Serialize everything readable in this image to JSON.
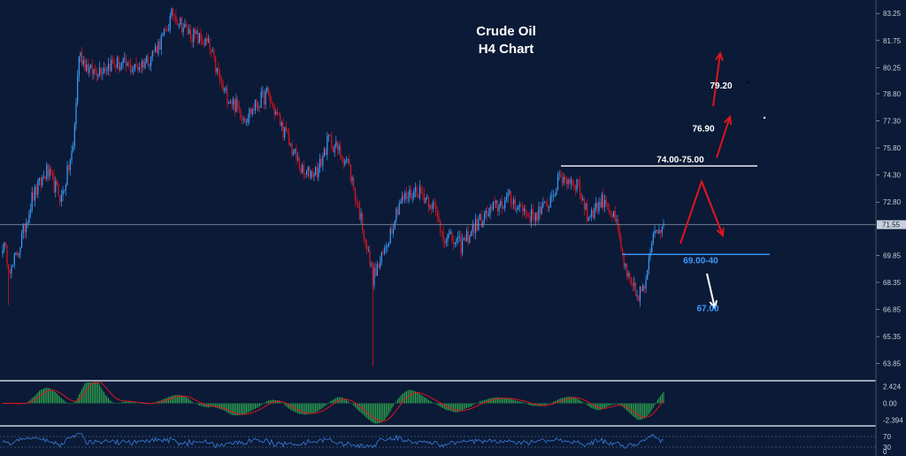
{
  "chart_data": [
    {
      "type": "candlestick",
      "title": "Crude Oil",
      "subtitle": "H4 Chart",
      "ylim": [
        63.0,
        83.8
      ],
      "y_ticks": [
        "83.25",
        "81.75",
        "80.25",
        "78.80",
        "77.30",
        "75.80",
        "74.30",
        "72.80",
        "71.55",
        "69.85",
        "68.35",
        "66.85",
        "65.35",
        "63.85"
      ],
      "current_price": 71.55,
      "current_price_label": "71.55",
      "resistance": {
        "label": "74.00-75.00",
        "value": 74.8
      },
      "support": {
        "label": "69.00-40",
        "value": 69.9
      },
      "targets": [
        {
          "label": "79.20",
          "value": 79.2
        },
        {
          "label": "76.90",
          "value": 76.9
        },
        {
          "label": "67.00",
          "value": 67.0
        }
      ],
      "colors": {
        "up": "#3aa0ff",
        "down": "#e0141e",
        "background": "#0b1a36",
        "resistance": "#ffffff",
        "support": "#3d9bff",
        "arrow_up": "#e0141e",
        "arrow_down": "#ffffff"
      },
      "anchors": [
        [
          0,
          70.5
        ],
        [
          6,
          69.0
        ],
        [
          12,
          70.5
        ],
        [
          20,
          73.0
        ],
        [
          30,
          74.5
        ],
        [
          40,
          73.0
        ],
        [
          48,
          75.8
        ],
        [
          52,
          81.0
        ],
        [
          60,
          80.0
        ],
        [
          75,
          80.5
        ],
        [
          90,
          80.2
        ],
        [
          100,
          80.8
        ],
        [
          110,
          82.0
        ],
        [
          116,
          83.3
        ],
        [
          125,
          82.3
        ],
        [
          140,
          81.5
        ],
        [
          150,
          79.0
        ],
        [
          165,
          77.5
        ],
        [
          180,
          78.8
        ],
        [
          190,
          77.0
        ],
        [
          205,
          74.3
        ],
        [
          215,
          74.6
        ],
        [
          222,
          76.3
        ],
        [
          235,
          75.0
        ],
        [
          245,
          71.5
        ],
        [
          252,
          68.6
        ],
        [
          258,
          69.6
        ],
        [
          270,
          72.8
        ],
        [
          282,
          73.5
        ],
        [
          292,
          72.8
        ],
        [
          300,
          71.0
        ],
        [
          312,
          70.4
        ],
        [
          322,
          71.5
        ],
        [
          335,
          72.5
        ],
        [
          345,
          73.0
        ],
        [
          360,
          72.0
        ],
        [
          370,
          72.5
        ],
        [
          380,
          74.2
        ],
        [
          392,
          73.8
        ],
        [
          398,
          72.0
        ],
        [
          410,
          73.0
        ],
        [
          418,
          71.5
        ],
        [
          425,
          68.6
        ],
        [
          432,
          67.6
        ],
        [
          438,
          68.2
        ],
        [
          443,
          71.3
        ],
        [
          450,
          71.6
        ]
      ]
    },
    {
      "type": "histogram",
      "indicator": "MACD",
      "y_ticks": [
        "2.424",
        "0.00",
        "-2.394"
      ],
      "ylim": [
        -3.0,
        3.0
      ]
    },
    {
      "type": "line",
      "indicator": "RSI",
      "y_ticks": [
        "70",
        "30",
        "0"
      ],
      "ylim": [
        0,
        100
      ]
    }
  ]
}
